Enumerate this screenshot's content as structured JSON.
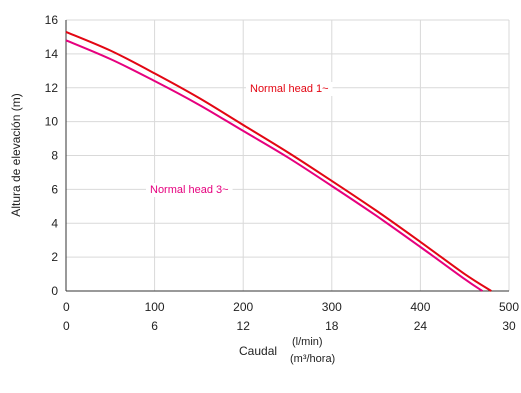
{
  "chart_data": {
    "type": "line",
    "title": "",
    "ylabel": "Altura de elevación (m)",
    "xlabel": "Caudal",
    "x_units": [
      "(l/min)",
      "(m³/hora)"
    ],
    "xlim": [
      0,
      500
    ],
    "ylim": [
      0,
      16
    ],
    "y_ticks": [
      0,
      2,
      4,
      6,
      8,
      10,
      12,
      14,
      16
    ],
    "x_ticks_lmin": [
      0,
      100,
      200,
      300,
      400,
      500
    ],
    "x_ticks_m3h": [
      0,
      6,
      12,
      18,
      24,
      30
    ],
    "grid": true,
    "legend": "inline labels",
    "series": [
      {
        "name": "Normal head 1~",
        "color": "#e30613",
        "x": [
          0,
          50,
          100,
          150,
          200,
          250,
          300,
          350,
          400,
          450,
          480
        ],
        "y": [
          15.3,
          14.2,
          12.85,
          11.4,
          9.8,
          8.2,
          6.5,
          4.75,
          2.9,
          1.0,
          0
        ]
      },
      {
        "name": "Normal head 3~",
        "color": "#e6007e",
        "x": [
          0,
          50,
          100,
          150,
          200,
          250,
          300,
          350,
          400,
          450,
          470
        ],
        "y": [
          14.8,
          13.7,
          12.4,
          11.0,
          9.45,
          7.9,
          6.2,
          4.45,
          2.6,
          0.7,
          0
        ]
      }
    ]
  }
}
